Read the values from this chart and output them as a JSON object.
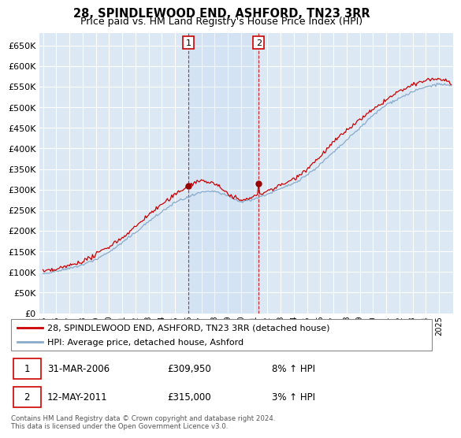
{
  "title": "28, SPINDLEWOOD END, ASHFORD, TN23 3RR",
  "subtitle": "Price paid vs. HM Land Registry's House Price Index (HPI)",
  "ylim": [
    0,
    680000
  ],
  "yticks": [
    0,
    50000,
    100000,
    150000,
    200000,
    250000,
    300000,
    350000,
    400000,
    450000,
    500000,
    550000,
    600000,
    650000
  ],
  "background_color": "#ffffff",
  "plot_bg_color": "#dce9f5",
  "grid_color": "#c8d8e8",
  "legend_entries": [
    "28, SPINDLEWOOD END, ASHFORD, TN23 3RR (detached house)",
    "HPI: Average price, detached house, Ashford"
  ],
  "legend_colors": [
    "#cc0000",
    "#88aacc"
  ],
  "annotation1": {
    "label": "1",
    "date": "31-MAR-2006",
    "price": "£309,950",
    "hpi": "8% ↑ HPI",
    "year_idx": 132
  },
  "annotation2": {
    "label": "2",
    "date": "12-MAY-2011",
    "price": "£315,000",
    "hpi": "3% ↑ HPI",
    "year_idx": 196
  },
  "footnote": "Contains HM Land Registry data © Crown copyright and database right 2024.\nThis data is licensed under the Open Government Licence v3.0.",
  "title_fontsize": 11,
  "subtitle_fontsize": 9.5,
  "x_year_ticks": [
    1995,
    1996,
    1997,
    1998,
    1999,
    2000,
    2001,
    2002,
    2003,
    2004,
    2005,
    2006,
    2007,
    2008,
    2009,
    2010,
    2011,
    2012,
    2013,
    2014,
    2015,
    2016,
    2017,
    2018,
    2019,
    2020,
    2021,
    2022,
    2023,
    2024,
    2025
  ]
}
